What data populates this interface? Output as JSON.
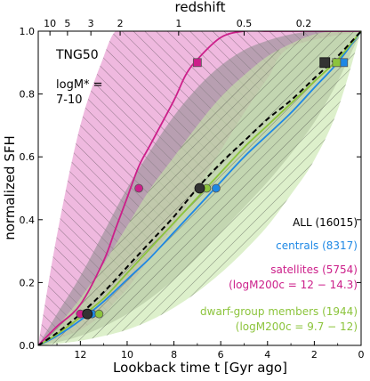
{
  "chart_data": {
    "type": "line",
    "xlabel": "Lookback time t [Gyr ago]",
    "x2label": "redshift",
    "ylabel": "normalized SFH",
    "xlim": [
      13.8,
      0
    ],
    "ylim": [
      0,
      1
    ],
    "x_ticks": [
      12,
      10,
      8,
      6,
      4,
      2,
      0
    ],
    "y_ticks": [
      0.0,
      0.2,
      0.4,
      0.6,
      0.8,
      1.0
    ],
    "redshift_ticks": [
      {
        "label": "10",
        "t": 13.3
      },
      {
        "label": "5",
        "t": 12.55
      },
      {
        "label": "3",
        "t": 11.55
      },
      {
        "label": "2",
        "t": 10.3
      },
      {
        "label": "1",
        "t": 7.8
      },
      {
        "label": "0.5",
        "t": 5.0
      },
      {
        "label": "0.2",
        "t": 2.45
      }
    ],
    "annotations": {
      "sim": "TNG50",
      "mass_line1": "logM* =",
      "mass_line2": "7-10"
    },
    "series": [
      {
        "name": "ALL (16015)",
        "color": "#000000",
        "style": "dashed",
        "x": [
          13.8,
          13.0,
          12.0,
          11.0,
          10.0,
          9.0,
          8.0,
          7.0,
          6.0,
          5.0,
          4.0,
          3.0,
          2.0,
          1.0,
          0.0
        ],
        "y": [
          0.0,
          0.04,
          0.1,
          0.17,
          0.25,
          0.33,
          0.41,
          0.5,
          0.58,
          0.65,
          0.72,
          0.78,
          0.85,
          0.92,
          1.0
        ],
        "markers": [
          {
            "x": 11.7,
            "y": 0.1
          },
          {
            "x": 6.9,
            "y": 0.5
          },
          {
            "x": 1.55,
            "y": 0.9
          }
        ],
        "marker_color": "#333333",
        "band_color": "#8a8a8a",
        "band_upper": [
          0.0,
          0.1,
          0.22,
          0.36,
          0.5,
          0.62,
          0.73,
          0.82,
          0.89,
          0.94,
          0.97,
          0.99,
          1.0,
          1.0,
          1.0
        ],
        "band_lower": [
          0.0,
          0.01,
          0.03,
          0.06,
          0.1,
          0.15,
          0.21,
          0.28,
          0.36,
          0.44,
          0.52,
          0.61,
          0.71,
          0.84,
          1.0
        ]
      },
      {
        "name": "centrals (8317)",
        "color": "#1e88e5",
        "style": "solid",
        "x": [
          13.8,
          13.0,
          12.0,
          11.0,
          10.0,
          9.0,
          8.0,
          7.0,
          6.0,
          5.0,
          4.0,
          3.0,
          2.0,
          1.0,
          0.0
        ],
        "y": [
          0.0,
          0.03,
          0.08,
          0.14,
          0.21,
          0.28,
          0.36,
          0.44,
          0.52,
          0.6,
          0.67,
          0.74,
          0.82,
          0.9,
          1.0
        ],
        "markers": [
          {
            "x": 11.5,
            "y": 0.1
          },
          {
            "x": 6.2,
            "y": 0.5
          },
          {
            "x": 0.75,
            "y": 0.9
          }
        ],
        "marker_color": "#1e88e5"
      },
      {
        "name": "satellites (5754)",
        "name2": "(logM200c = 12 − 14.3)",
        "color": "#cc1f8a",
        "style": "solid",
        "x": [
          13.8,
          13.0,
          12.0,
          11.0,
          10.5,
          10.0,
          9.5,
          9.0,
          8.0,
          7.5,
          7.0,
          6.0,
          5.0,
          4.0,
          3.0,
          0.0
        ],
        "y": [
          0.0,
          0.06,
          0.13,
          0.27,
          0.37,
          0.47,
          0.57,
          0.64,
          0.78,
          0.86,
          0.91,
          0.98,
          1.0,
          1.0,
          1.0,
          1.0
        ],
        "markers": [
          {
            "x": 12.0,
            "y": 0.1
          },
          {
            "x": 9.5,
            "y": 0.5
          },
          {
            "x": 7.0,
            "y": 0.9
          }
        ],
        "marker_color": "#cc1f8a",
        "band_color": "#e27fc4",
        "band_upper": [
          0.0,
          0.35,
          0.7,
          0.92,
          1.0,
          1.0,
          1.0,
          1.0,
          1.0,
          1.0,
          1.0,
          1.0,
          1.0,
          1.0,
          1.0,
          1.0
        ],
        "band_lower": [
          0.0,
          0.02,
          0.05,
          0.1,
          0.14,
          0.18,
          0.23,
          0.28,
          0.38,
          0.44,
          0.5,
          0.62,
          0.74,
          0.85,
          0.95,
          1.0
        ]
      },
      {
        "name": "dwarf-group members (1944)",
        "name2": "(logM200c = 9.7 − 12)",
        "color": "#8cc43c",
        "style": "solid",
        "x": [
          13.8,
          13.0,
          12.0,
          11.0,
          10.0,
          9.0,
          8.0,
          7.0,
          6.0,
          5.0,
          4.0,
          3.0,
          2.0,
          1.0,
          0.0
        ],
        "y": [
          0.0,
          0.035,
          0.09,
          0.15,
          0.23,
          0.31,
          0.39,
          0.47,
          0.55,
          0.63,
          0.7,
          0.77,
          0.84,
          0.91,
          1.0
        ],
        "markers": [
          {
            "x": 11.2,
            "y": 0.1
          },
          {
            "x": 6.6,
            "y": 0.5
          },
          {
            "x": 1.05,
            "y": 0.9
          }
        ],
        "marker_color": "#8cc43c",
        "band_color": "#c7e6a8",
        "band_upper": [
          0.0,
          0.06,
          0.15,
          0.26,
          0.38,
          0.5,
          0.6,
          0.7,
          0.79,
          0.86,
          0.92,
          0.96,
          0.99,
          1.0,
          1.0
        ],
        "band_lower": [
          0.0,
          0.005,
          0.015,
          0.03,
          0.05,
          0.08,
          0.12,
          0.17,
          0.23,
          0.3,
          0.38,
          0.48,
          0.59,
          0.75,
          1.0
        ]
      }
    ]
  }
}
